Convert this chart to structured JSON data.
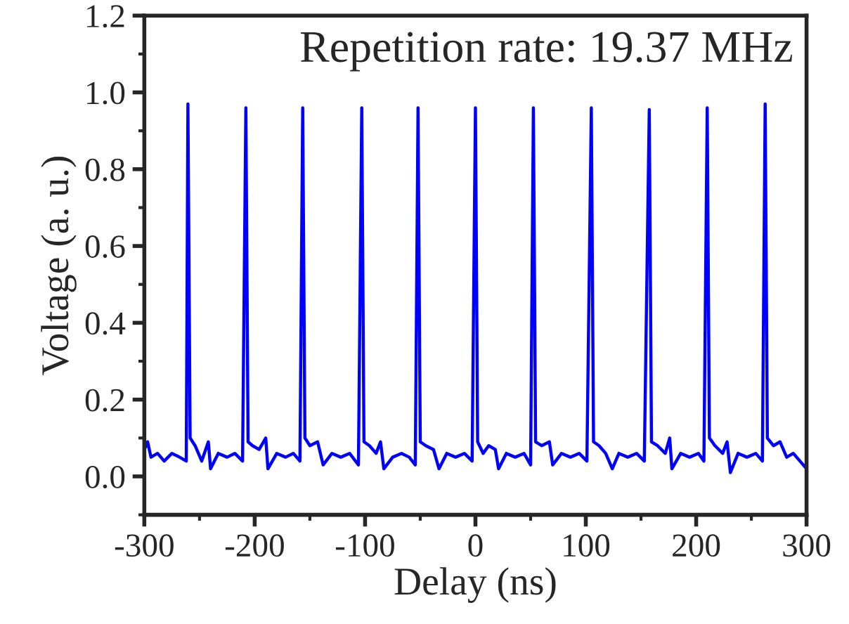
{
  "chart_data": {
    "type": "line",
    "xlabel": "Delay (ns)",
    "ylabel": "Voltage (a. u.)",
    "annotations": [
      "Repetition rate: 19.37 MHz"
    ],
    "xlim": [
      -300,
      300
    ],
    "xticks": [
      -300,
      -200,
      -100,
      0,
      100,
      200,
      300
    ],
    "ylim": [
      -0.1,
      1.2
    ],
    "yticks": [
      {
        "value": 0,
        "label": "0.0"
      },
      0.2,
      0.4,
      0.6,
      0.8,
      {
        "value": 1,
        "label": "1.0"
      },
      1.2
    ],
    "grid": false,
    "legend": false,
    "marker": "none",
    "line_style": "solid",
    "x": [
      -300,
      -297,
      -294,
      -288,
      -282,
      -275,
      -268,
      -262,
      -260.5,
      -258.5,
      -254,
      -248,
      -242,
      -240,
      -233,
      -225,
      -218,
      -211,
      -208,
      -206,
      -202,
      -196,
      -190,
      -188,
      -180,
      -172,
      -165,
      -159,
      -156.5,
      -154.5,
      -150,
      -143,
      -138,
      -130,
      -122,
      -114,
      -106,
      -103,
      -101,
      -96,
      -90,
      -86,
      -83,
      -75,
      -67,
      -60,
      -54.5,
      -52,
      -50,
      -45,
      -38,
      -33,
      -26,
      -18,
      -10,
      -3,
      0,
      2,
      7,
      12,
      18,
      21,
      28,
      36,
      44,
      50,
      52.5,
      54.5,
      60,
      67,
      70,
      78,
      86,
      94,
      101,
      105,
      107,
      112,
      118,
      124,
      130,
      138,
      146,
      153,
      157.5,
      159.5,
      165,
      172,
      176,
      178,
      186,
      194,
      202,
      207,
      210,
      212,
      217,
      224,
      228,
      231,
      238,
      246,
      254,
      260,
      262.5,
      264.5,
      270,
      276,
      282,
      288,
      294,
      300
    ],
    "series": [
      {
        "color": "#0000ff",
        "values": [
          0.07,
          0.09,
          0.05,
          0.06,
          0.04,
          0.06,
          0.05,
          0.04,
          0.97,
          0.1,
          0.08,
          0.04,
          0.09,
          0.02,
          0.06,
          0.05,
          0.06,
          0.04,
          0.96,
          0.09,
          0.08,
          0.07,
          0.1,
          0.02,
          0.06,
          0.05,
          0.06,
          0.04,
          0.96,
          0.1,
          0.08,
          0.09,
          0.03,
          0.06,
          0.05,
          0.06,
          0.03,
          0.96,
          0.09,
          0.08,
          0.06,
          0.09,
          0.02,
          0.05,
          0.06,
          0.05,
          0.03,
          0.96,
          0.09,
          0.08,
          0.07,
          0.02,
          0.06,
          0.05,
          0.06,
          0.04,
          0.96,
          0.09,
          0.06,
          0.08,
          0.07,
          0.02,
          0.06,
          0.05,
          0.06,
          0.03,
          0.96,
          0.09,
          0.08,
          0.09,
          0.03,
          0.06,
          0.05,
          0.06,
          0.04,
          0.96,
          0.09,
          0.08,
          0.06,
          0.02,
          0.06,
          0.05,
          0.06,
          0.04,
          0.955,
          0.09,
          0.08,
          0.06,
          0.1,
          0.02,
          0.06,
          0.05,
          0.06,
          0.04,
          0.96,
          0.1,
          0.08,
          0.06,
          0.09,
          0.01,
          0.06,
          0.05,
          0.06,
          0.04,
          0.97,
          0.1,
          0.08,
          0.09,
          0.05,
          0.06,
          0.04,
          0.02
        ]
      }
    ]
  }
}
